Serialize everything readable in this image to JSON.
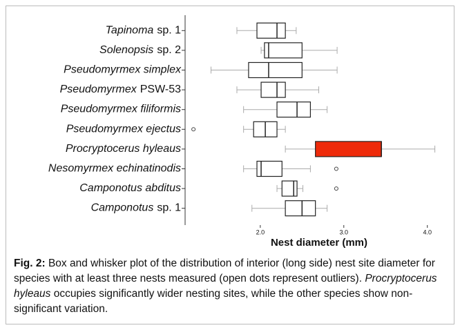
{
  "chart_data": {
    "type": "box",
    "orientation": "horizontal",
    "xlabel": "Nest diameter (mm)",
    "xlim": [
      1.1,
      4.3
    ],
    "xticks": [
      {
        "value": 2,
        "label": "2.0"
      },
      {
        "value": 3,
        "label": "3.0"
      },
      {
        "value": 4,
        "label": "4.0"
      }
    ],
    "categories": [
      {
        "italic": "Tapinoma",
        "plain": "sp. 1"
      },
      {
        "italic": "Solenopsis",
        "plain": "sp. 2"
      },
      {
        "italic": "Pseudomyrmex simplex"
      },
      {
        "italic": "Pseudomyrmex",
        "plain": "PSW-53"
      },
      {
        "italic": "Pseudomyrmex filiformis"
      },
      {
        "italic": "Pseudomyrmex ejectus"
      },
      {
        "italic": "Procryptocerus hyleaus"
      },
      {
        "italic": "Nesomyrmex echinatinodis"
      },
      {
        "italic": "Camponotus abditus"
      },
      {
        "italic": "Camponotus",
        "plain": "sp. 1"
      }
    ],
    "boxes": [
      {
        "whislo": 1.72,
        "q1": 1.96,
        "median": 2.2,
        "q3": 2.3,
        "whishi": 2.43,
        "outliers": [],
        "color": "#ffffff"
      },
      {
        "whislo": 2.01,
        "q1": 2.05,
        "median": 2.1,
        "q3": 2.5,
        "whishi": 2.92,
        "outliers": [],
        "color": "#ffffff"
      },
      {
        "whislo": 1.41,
        "q1": 1.86,
        "median": 2.1,
        "q3": 2.5,
        "whishi": 2.92,
        "outliers": [],
        "color": "#ffffff"
      },
      {
        "whislo": 1.72,
        "q1": 2.01,
        "median": 2.2,
        "q3": 2.3,
        "whishi": 2.7,
        "outliers": [],
        "color": "#ffffff"
      },
      {
        "whislo": 1.8,
        "q1": 2.2,
        "median": 2.44,
        "q3": 2.6,
        "whishi": 2.8,
        "outliers": [],
        "color": "#ffffff"
      },
      {
        "whislo": 1.8,
        "q1": 1.92,
        "median": 2.06,
        "q3": 2.2,
        "whishi": 2.3,
        "outliers": [
          1.2
        ],
        "color": "#ffffff"
      },
      {
        "whislo": 2.3,
        "q1": 2.66,
        "median": 3.45,
        "q3": 3.45,
        "whishi": 4.09,
        "outliers": [],
        "color": "#ee2a0a"
      },
      {
        "whislo": 1.8,
        "q1": 1.96,
        "median": 2.01,
        "q3": 2.26,
        "whishi": 2.6,
        "outliers": [
          2.91
        ],
        "color": "#ffffff"
      },
      {
        "whislo": 2.2,
        "q1": 2.26,
        "median": 2.4,
        "q3": 2.44,
        "whishi": 2.51,
        "outliers": [
          2.91
        ],
        "color": "#ffffff"
      },
      {
        "whislo": 1.9,
        "q1": 2.3,
        "median": 2.5,
        "q3": 2.66,
        "whishi": 2.8,
        "outliers": [],
        "color": "#ffffff"
      }
    ]
  },
  "caption": {
    "label": "Fig. 2:",
    "text": "Box and whisker plot of the distribution of interior (long side) nest site diameter for species with at least three nests measured (open dots represent outliers).",
    "italic": "Procryptocerus hyleaus",
    "text2": "occupies significantly wider nesting sites, while the other species show non-significant variation."
  }
}
